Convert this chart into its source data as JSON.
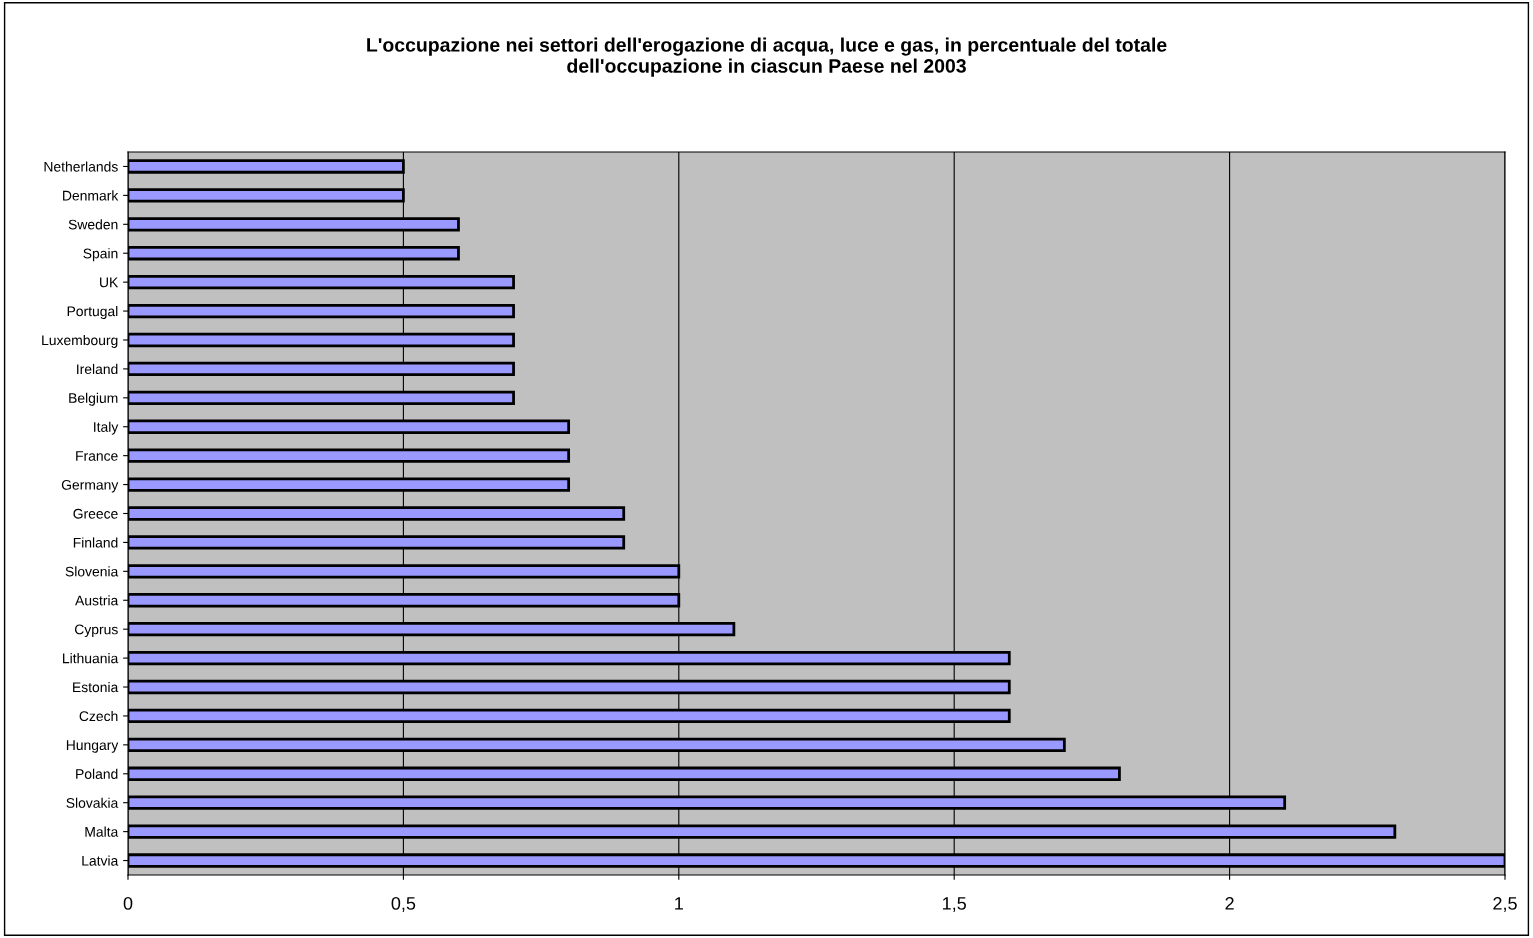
{
  "chart_data": {
    "type": "bar",
    "orientation": "horizontal",
    "title": "L'occupazione nei settori dell'erogazione di acqua, luce e gas, in percentuale del totale\ndell'occupazione in ciascun Paese nel 2003",
    "categories": [
      "Netherlands",
      "Denmark",
      "Sweden",
      "Spain",
      "UK",
      "Portugal",
      "Luxembourg",
      "Ireland",
      "Belgium",
      "Italy",
      "France",
      "Germany",
      "Greece",
      "Finland",
      "Slovenia",
      "Austria",
      "Cyprus",
      "Lithuania",
      "Estonia",
      "Czech",
      "Hungary",
      "Poland",
      "Slovakia",
      "Malta",
      "Latvia"
    ],
    "values": [
      0.5,
      0.5,
      0.6,
      0.6,
      0.7,
      0.7,
      0.7,
      0.7,
      0.7,
      0.8,
      0.8,
      0.8,
      0.9,
      0.9,
      1.0,
      1.0,
      1.1,
      1.6,
      1.6,
      1.6,
      1.7,
      1.8,
      2.1,
      2.3,
      2.5
    ],
    "color": "#9999ff",
    "xlim": [
      0,
      2.5
    ],
    "xticks": [
      0,
      {
        "value": 0.5,
        "label": "0,5"
      },
      1,
      {
        "value": 1.5,
        "label": "1,5"
      },
      2,
      {
        "value": 2.5,
        "label": "2,5"
      }
    ],
    "grid": "x"
  }
}
